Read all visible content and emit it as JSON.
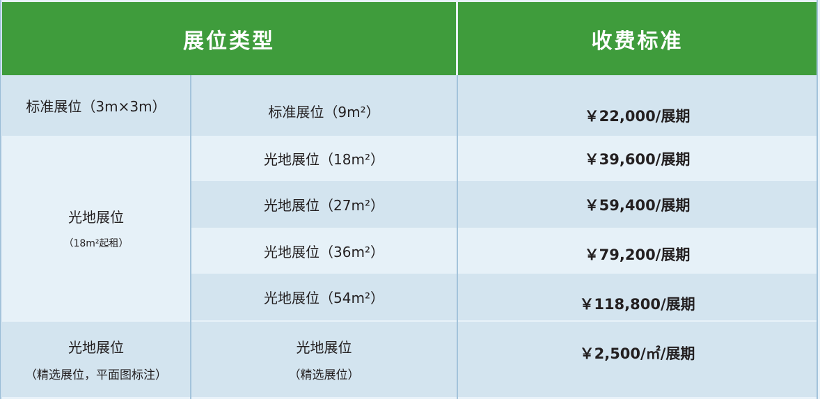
{
  "header": {
    "type": "展位类型",
    "price": "收费标准"
  },
  "rows": [
    {
      "group": "标准展位（3m×3m）",
      "type": "标准展位（9m²）",
      "price": "￥22,000/展期"
    },
    {
      "type": "光地展位（18m²）",
      "price": "￥39,600/展期"
    },
    {
      "type": "光地展位（27m²）",
      "price": "￥59,400/展期"
    },
    {
      "type": "光地展位（36m²）",
      "price": "￥79,200/展期"
    },
    {
      "type": "光地展位（54m²）",
      "price": "￥118,800/展期"
    },
    {
      "group": "光地展位",
      "group_note": "（精选展位，平面图标注）",
      "type": "光地展位",
      "type_note": "（精选展位）",
      "price": "￥2,500/㎡/展期"
    }
  ],
  "group2": {
    "label": "光地展位",
    "note": "（18m²起租）"
  },
  "colors": {
    "header": "#3f9c3c",
    "row_dark": "#d3e4ef",
    "row_light": "#e6f1f8"
  }
}
